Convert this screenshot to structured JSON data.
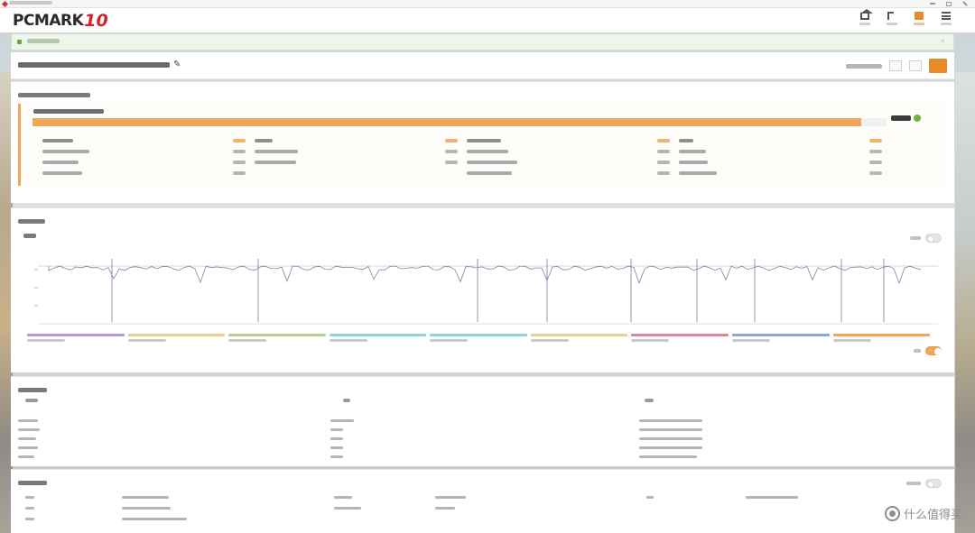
{
  "window": {
    "title": ""
  },
  "header": {
    "brand": "PCMARK",
    "brand_version": "10",
    "icons": [
      {
        "name": "home-icon"
      },
      {
        "name": "back-arrow-icon"
      },
      {
        "name": "folder-icon"
      },
      {
        "name": "menu-icon"
      }
    ]
  },
  "notice": {
    "text": ""
  },
  "result": {
    "title": "",
    "edit_icon": "✎",
    "actions": [
      "",
      "",
      "",
      ""
    ]
  },
  "benchmark_card": {
    "title": "",
    "bench_name": "",
    "score": "",
    "score_fill_fraction": 0.97,
    "status_icon": "check-circle-icon",
    "accent_color": "#f0a658",
    "groups": [
      {
        "head": "",
        "head_value": "",
        "rows": [
          {
            "label": "",
            "value": ""
          },
          {
            "label": "",
            "value": ""
          },
          {
            "label": "",
            "value": ""
          }
        ]
      },
      {
        "head": "",
        "head_value": "",
        "rows": [
          {
            "label": "",
            "value": ""
          },
          {
            "label": "",
            "value": ""
          }
        ]
      },
      {
        "head": "",
        "head_value": "",
        "rows": [
          {
            "label": "",
            "value": ""
          },
          {
            "label": "",
            "value": ""
          },
          {
            "label": "",
            "value": ""
          }
        ]
      },
      {
        "head": "",
        "head_value": "",
        "rows": [
          {
            "label": "",
            "value": ""
          },
          {
            "label": "",
            "value": ""
          },
          {
            "label": "",
            "value": ""
          }
        ]
      }
    ]
  },
  "monitoring_card": {
    "title": "",
    "subtitle": "",
    "toggle_top_on": false,
    "toggle_bottom_on": true,
    "legend_colors": [
      "#b39ad6",
      "#e7cf8f",
      "#b9cf8d",
      "#8dd3e0",
      "#8dd3e0",
      "#e7cf8f",
      "#d98a9a",
      "#8aa8d6",
      "#f0a658"
    ]
  },
  "system_card": {
    "title": "",
    "columns": [
      "",
      "",
      ""
    ],
    "rows": [
      [
        "",
        "",
        ""
      ],
      [
        "",
        "",
        ""
      ],
      [
        "",
        "",
        ""
      ],
      [
        "",
        "",
        ""
      ],
      [
        "",
        "",
        ""
      ]
    ]
  },
  "details_card": {
    "title": "",
    "rows": [
      [
        "",
        "",
        "",
        "",
        "",
        ""
      ],
      [
        "",
        "",
        "",
        "",
        "",
        ""
      ],
      [
        "",
        "",
        "",
        "",
        "",
        ""
      ]
    ]
  },
  "watermark": {
    "text": "什么值得买"
  }
}
